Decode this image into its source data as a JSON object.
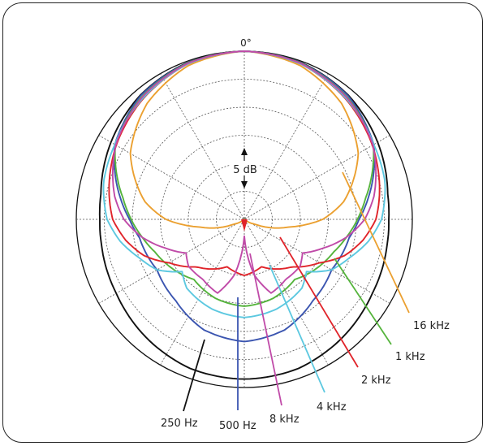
{
  "chart_data": {
    "type": "polar",
    "title": "",
    "angle_label": "0°",
    "scale_label": "5 dB",
    "grid": true,
    "grid_rings": 6,
    "grid_spoke_step_deg": 30,
    "series": [
      {
        "name": "250 Hz",
        "color": "#111111",
        "points": [
          [
            0,
            0
          ],
          [
            20,
            -0.25
          ],
          [
            40,
            -1.1
          ],
          [
            60,
            -2.5
          ],
          [
            80,
            -4
          ],
          [
            90,
            -4.2
          ],
          [
            100,
            -4.1
          ],
          [
            120,
            -3.6
          ],
          [
            140,
            -2.6
          ],
          [
            160,
            -1.7
          ],
          [
            180,
            -1.5
          ]
        ]
      },
      {
        "name": "500 Hz",
        "color": "#3b55b0",
        "points": [
          [
            0,
            0
          ],
          [
            20,
            -0.3
          ],
          [
            40,
            -1.2
          ],
          [
            60,
            -3.3
          ],
          [
            80,
            -7.5
          ],
          [
            90,
            -9.5
          ],
          [
            100,
            -11
          ],
          [
            110,
            -11.5
          ],
          [
            120,
            -12
          ],
          [
            140,
            -11
          ],
          [
            160,
            -9
          ],
          [
            180,
            -8.2
          ]
        ]
      },
      {
        "name": "1 kHz",
        "color": "#55b43c",
        "points": [
          [
            0,
            0
          ],
          [
            20,
            -0.35
          ],
          [
            40,
            -1.5
          ],
          [
            60,
            -3.4
          ],
          [
            80,
            -8
          ],
          [
            90,
            -9.8
          ],
          [
            100,
            -11.5
          ],
          [
            110,
            -13
          ],
          [
            120,
            -14
          ],
          [
            140,
            -16
          ],
          [
            160,
            -15
          ],
          [
            180,
            -14.5
          ]
        ]
      },
      {
        "name": "2 kHz",
        "color": "#e0242a",
        "points": [
          [
            0,
            0
          ],
          [
            20,
            -0.5
          ],
          [
            40,
            -1.9
          ],
          [
            60,
            -3.6
          ],
          [
            80,
            -5.5
          ],
          [
            90,
            -6.5
          ],
          [
            100,
            -8.5
          ],
          [
            110,
            -11
          ],
          [
            120,
            -14.5
          ],
          [
            135,
            -18
          ],
          [
            160,
            -21
          ],
          [
            180,
            -20
          ]
        ]
      },
      {
        "name": "4 kHz",
        "color": "#5cc8e0",
        "points": [
          [
            0,
            0
          ],
          [
            20,
            -0.5
          ],
          [
            40,
            -1.8
          ],
          [
            60,
            -3.3
          ],
          [
            75,
            -4
          ],
          [
            90,
            -5.5
          ],
          [
            100,
            -7.5
          ],
          [
            110,
            -10
          ],
          [
            120,
            -12
          ],
          [
            130,
            -15.5
          ],
          [
            140,
            -14
          ],
          [
            160,
            -13
          ],
          [
            180,
            -12.5
          ]
        ]
      },
      {
        "name": "8 kHz",
        "color": "#c04aa8",
        "points": [
          [
            0,
            0
          ],
          [
            20,
            -0.4
          ],
          [
            40,
            -1.6
          ],
          [
            60,
            -3.5
          ],
          [
            80,
            -6.5
          ],
          [
            90,
            -8.5
          ],
          [
            100,
            -11.5
          ],
          [
            110,
            -15
          ],
          [
            120,
            -18
          ],
          [
            130,
            -17
          ],
          [
            145,
            -17
          ],
          [
            160,
            -16
          ],
          [
            170,
            -20
          ],
          [
            180,
            -27
          ]
        ]
      },
      {
        "name": "16 kHz",
        "color": "#eba030",
        "points": [
          [
            0,
            0
          ],
          [
            20,
            -0.8
          ],
          [
            40,
            -3
          ],
          [
            60,
            -6.5
          ],
          [
            80,
            -12
          ],
          [
            90,
            -16
          ],
          [
            100,
            -22
          ],
          [
            115,
            -28
          ],
          [
            130,
            -30
          ],
          [
            150,
            -30
          ],
          [
            180,
            -30
          ]
        ]
      }
    ]
  }
}
